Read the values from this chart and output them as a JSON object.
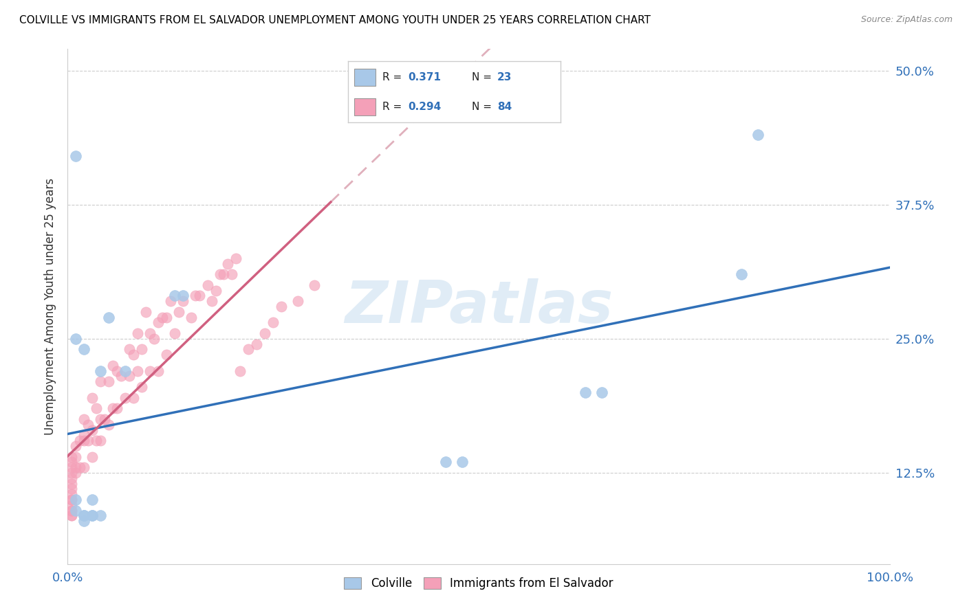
{
  "title": "COLVILLE VS IMMIGRANTS FROM EL SALVADOR UNEMPLOYMENT AMONG YOUTH UNDER 25 YEARS CORRELATION CHART",
  "source": "Source: ZipAtlas.com",
  "ylabel": "Unemployment Among Youth under 25 years",
  "legend_colville": "Colville",
  "legend_immigrants": "Immigrants from El Salvador",
  "R_colville": "0.371",
  "N_colville": "23",
  "R_immigrants": "0.294",
  "N_immigrants": "84",
  "colville_color": "#a8c8e8",
  "immigrants_color": "#f4a0b8",
  "colville_line_color": "#3070b8",
  "immigrants_line_color": "#d06080",
  "immigrants_dash_color": "#e0b0bc",
  "watermark": "ZIPatlas",
  "watermark_color": "#cce0f0",
  "ytick_labels": [
    "12.5%",
    "25.0%",
    "37.5%",
    "50.0%"
  ],
  "ytick_values": [
    0.125,
    0.25,
    0.375,
    0.5
  ],
  "xlim": [
    0,
    1.0
  ],
  "ylim": [
    0.04,
    0.52
  ],
  "title_fontsize": 11,
  "colville_x": [
    0.01,
    0.01,
    0.01,
    0.02,
    0.02,
    0.03,
    0.04,
    0.05,
    0.07,
    0.13,
    0.14,
    0.46,
    0.48,
    0.63,
    0.65,
    0.82,
    0.84,
    0.01,
    0.02,
    0.02,
    0.03,
    0.03,
    0.04
  ],
  "colville_y": [
    0.25,
    0.1,
    0.09,
    0.24,
    0.085,
    0.1,
    0.22,
    0.27,
    0.22,
    0.29,
    0.29,
    0.135,
    0.135,
    0.2,
    0.2,
    0.31,
    0.44,
    0.42,
    0.08,
    0.085,
    0.085,
    0.085,
    0.085
  ],
  "immigrants_x": [
    0.005,
    0.005,
    0.005,
    0.005,
    0.005,
    0.005,
    0.005,
    0.005,
    0.005,
    0.005,
    0.005,
    0.005,
    0.005,
    0.005,
    0.005,
    0.01,
    0.01,
    0.01,
    0.01,
    0.015,
    0.015,
    0.02,
    0.02,
    0.02,
    0.02,
    0.025,
    0.025,
    0.03,
    0.03,
    0.03,
    0.035,
    0.035,
    0.04,
    0.04,
    0.04,
    0.045,
    0.05,
    0.05,
    0.055,
    0.055,
    0.06,
    0.06,
    0.065,
    0.07,
    0.075,
    0.075,
    0.08,
    0.08,
    0.085,
    0.085,
    0.09,
    0.09,
    0.095,
    0.1,
    0.1,
    0.105,
    0.11,
    0.11,
    0.115,
    0.12,
    0.12,
    0.125,
    0.13,
    0.135,
    0.14,
    0.15,
    0.155,
    0.16,
    0.17,
    0.175,
    0.18,
    0.185,
    0.19,
    0.195,
    0.2,
    0.205,
    0.21,
    0.22,
    0.23,
    0.24,
    0.25,
    0.26,
    0.28,
    0.3
  ],
  "immigrants_y": [
    0.085,
    0.085,
    0.09,
    0.09,
    0.095,
    0.1,
    0.1,
    0.105,
    0.11,
    0.115,
    0.12,
    0.125,
    0.13,
    0.135,
    0.14,
    0.125,
    0.13,
    0.14,
    0.15,
    0.13,
    0.155,
    0.13,
    0.155,
    0.16,
    0.175,
    0.155,
    0.17,
    0.14,
    0.165,
    0.195,
    0.155,
    0.185,
    0.155,
    0.175,
    0.21,
    0.175,
    0.17,
    0.21,
    0.185,
    0.225,
    0.185,
    0.22,
    0.215,
    0.195,
    0.215,
    0.24,
    0.195,
    0.235,
    0.22,
    0.255,
    0.205,
    0.24,
    0.275,
    0.22,
    0.255,
    0.25,
    0.22,
    0.265,
    0.27,
    0.235,
    0.27,
    0.285,
    0.255,
    0.275,
    0.285,
    0.27,
    0.29,
    0.29,
    0.3,
    0.285,
    0.295,
    0.31,
    0.31,
    0.32,
    0.31,
    0.325,
    0.22,
    0.24,
    0.245,
    0.255,
    0.265,
    0.28,
    0.285,
    0.3
  ]
}
